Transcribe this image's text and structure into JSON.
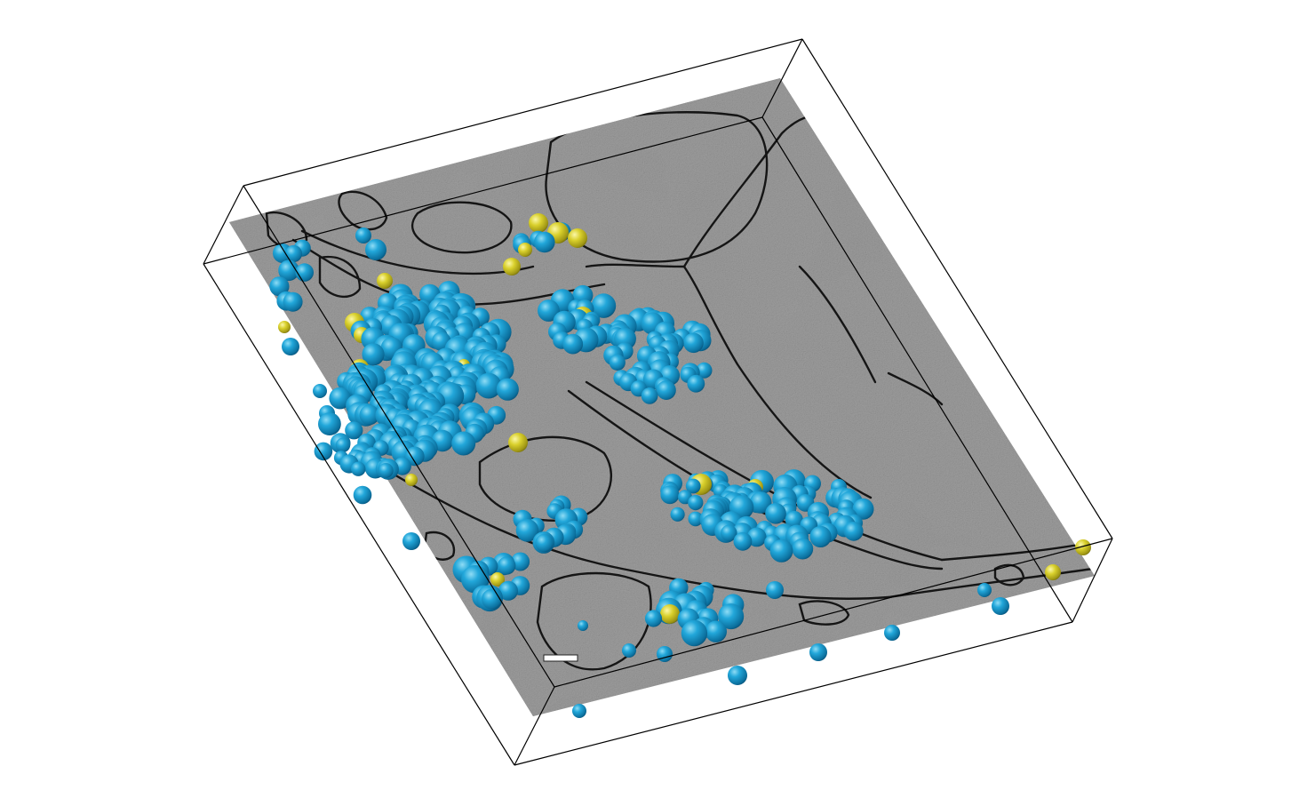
{
  "scene": {
    "description_free": true,
    "colors": {
      "background": "#ffffff",
      "box_edge": "#000000",
      "slab_base": "#a9a9a9",
      "slab_light": "#c4c4c4",
      "slab_dark": "#7d7d7d",
      "membrane": "#1a1a1a",
      "vesicle_blue": "#1c9dd0",
      "vesicle_blue_highlight": "#7fd2f0",
      "vesicle_blue_shadow": "#0a5d86",
      "vesicle_yellow": "#d6cd2a",
      "vesicle_yellow_highlight": "#f6f19a",
      "vesicle_yellow_shadow": "#8f8612",
      "scale_bar": "#ffffff"
    },
    "icons": [
      "scale-bar"
    ]
  }
}
